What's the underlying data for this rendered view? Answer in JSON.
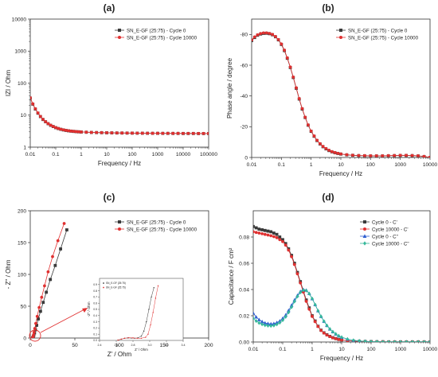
{
  "figure": {
    "panels": [
      {
        "id": "a",
        "label": "(a)"
      },
      {
        "id": "b",
        "label": "(b)"
      },
      {
        "id": "c",
        "label": "(c)"
      },
      {
        "id": "d",
        "label": "(d)"
      }
    ]
  },
  "chart_data": [
    {
      "panel": "a",
      "type": "line",
      "title": "(a)",
      "xlabel": "Frequency / Hz",
      "ylabel": "IZI / Ohm",
      "xscale": "log",
      "yscale": "log",
      "xlim": [
        0.01,
        100000
      ],
      "ylim": [
        1,
        10000
      ],
      "xticks": [
        "0.01",
        "0.1",
        "1",
        "10",
        "100",
        "1000",
        "10000",
        "100000"
      ],
      "yticks": [
        "1",
        "10",
        "100",
        "1000",
        "10000"
      ],
      "legend_position": "top-right",
      "x": [
        0.01,
        0.0126,
        0.0158,
        0.02,
        0.0251,
        0.0316,
        0.0398,
        0.0501,
        0.0631,
        0.0794,
        0.1,
        0.126,
        0.158,
        0.2,
        0.251,
        0.316,
        0.398,
        0.501,
        0.631,
        0.794,
        1,
        1.58,
        2.51,
        3.98,
        6.31,
        10,
        15.8,
        25.1,
        39.8,
        63.1,
        100,
        158,
        251,
        398,
        631,
        1000,
        1580,
        2510,
        3980,
        6310,
        10000,
        15800,
        25100,
        39800,
        63100,
        100000
      ],
      "series": [
        {
          "name": "SN_E-GF (25:75) - Cycle 0",
          "marker": "square",
          "color": "#3a3a3a",
          "values": [
            34,
            22,
            15.5,
            11.5,
            9.0,
            7.3,
            6.2,
            5.4,
            4.8,
            4.4,
            4.05,
            3.8,
            3.6,
            3.45,
            3.33,
            3.24,
            3.16,
            3.1,
            3.05,
            3.01,
            2.97,
            2.92,
            2.88,
            2.85,
            2.83,
            2.81,
            2.79,
            2.77,
            2.76,
            2.75,
            2.74,
            2.73,
            2.72,
            2.71,
            2.7,
            2.7,
            2.69,
            2.69,
            2.68,
            2.68,
            2.67,
            2.67,
            2.67,
            2.66,
            2.66,
            2.66
          ]
        },
        {
          "name": "SN_E-GF (25:75) - Cycle 10000",
          "marker": "circle",
          "color": "#e03030",
          "values": [
            35,
            22.5,
            15.8,
            11.7,
            9.1,
            7.4,
            6.25,
            5.45,
            4.85,
            4.42,
            4.08,
            3.82,
            3.62,
            3.47,
            3.35,
            3.25,
            3.17,
            3.11,
            3.06,
            3.02,
            2.98,
            2.93,
            2.89,
            2.86,
            2.84,
            2.82,
            2.8,
            2.78,
            2.77,
            2.76,
            2.75,
            2.74,
            2.73,
            2.72,
            2.71,
            2.71,
            2.7,
            2.7,
            2.69,
            2.69,
            2.68,
            2.68,
            2.68,
            2.67,
            2.67,
            2.67
          ]
        }
      ]
    },
    {
      "panel": "b",
      "type": "line",
      "title": "(b)",
      "xlabel": "Frequency / Hz",
      "ylabel": "Phase angle / degree",
      "xscale": "log",
      "yscale": "linear",
      "y_inverted": true,
      "xlim": [
        0.01,
        10000
      ],
      "ylim": [
        0,
        -90
      ],
      "xticks": [
        "0.01",
        "0.1",
        "1",
        "10",
        "100",
        "1000",
        "10000"
      ],
      "yticks": [
        "0",
        "-20",
        "-40",
        "-60",
        "-80"
      ],
      "legend_position": "top-right",
      "x": [
        0.01,
        0.0126,
        0.0158,
        0.02,
        0.0251,
        0.0316,
        0.0398,
        0.0501,
        0.0631,
        0.0794,
        0.1,
        0.126,
        0.158,
        0.2,
        0.251,
        0.316,
        0.398,
        0.501,
        0.631,
        0.794,
        1,
        1.26,
        1.58,
        2,
        2.51,
        3.16,
        3.98,
        5.01,
        6.31,
        7.94,
        10,
        15.8,
        25.1,
        39.8,
        63.1,
        100,
        158,
        251,
        398,
        631,
        1000,
        1580,
        2510,
        3980,
        6310,
        10000
      ],
      "series": [
        {
          "name": "SN_E-GF (25:75) - Cycle 0",
          "marker": "square",
          "color": "#3a3a3a",
          "values": [
            -76,
            -78,
            -79.5,
            -80.3,
            -80.7,
            -80.8,
            -80.5,
            -79.8,
            -78.5,
            -76.5,
            -73.5,
            -69.5,
            -64.5,
            -58.5,
            -52,
            -45,
            -38,
            -31.5,
            -26,
            -21,
            -17,
            -13.8,
            -11,
            -8.8,
            -7,
            -5.6,
            -4.5,
            -3.7,
            -3.1,
            -2.6,
            -2.2,
            -1.7,
            -1.4,
            -1.2,
            -1.1,
            -1.0,
            -1.0,
            -1.0,
            -1.1,
            -1.2,
            -1.3,
            -1.3,
            -1.2,
            -1.0,
            -0.6,
            0.0
          ]
        },
        {
          "name": "SN_E-GF (25:75) - Cycle 10000",
          "marker": "circle",
          "color": "#e03030",
          "values": [
            -76.5,
            -78.4,
            -79.8,
            -80.6,
            -81,
            -81,
            -80.7,
            -80,
            -78.7,
            -76.7,
            -73.8,
            -69.8,
            -64.8,
            -58.8,
            -52.3,
            -45.3,
            -38.3,
            -31.8,
            -26.2,
            -21.2,
            -17.2,
            -14,
            -11.2,
            -9,
            -7.2,
            -5.8,
            -4.7,
            -3.8,
            -3.2,
            -2.7,
            -2.3,
            -1.8,
            -1.5,
            -1.3,
            -1.2,
            -1.1,
            -1.1,
            -1.1,
            -1.2,
            -1.3,
            -1.4,
            -1.4,
            -1.3,
            -1.1,
            -0.7,
            -0.1
          ]
        }
      ]
    },
    {
      "panel": "c",
      "type": "scatter",
      "title": "(c)",
      "xlabel": "Z' / Ohm",
      "ylabel": "- Z'' / Ohm",
      "xlim": [
        0,
        200
      ],
      "ylim": [
        0,
        200
      ],
      "xticks": [
        "0",
        "50",
        "100",
        "150",
        "200"
      ],
      "yticks": [
        "0",
        "50",
        "100",
        "150",
        "200"
      ],
      "legend_position": "top-right",
      "series": [
        {
          "name": "SN_E-GF (25:75) - Cycle 0",
          "marker": "square",
          "color": "#3a3a3a",
          "points": [
            [
              2.6,
              0.1
            ],
            [
              2.8,
              0.4
            ],
            [
              3.1,
              1.2
            ],
            [
              3.5,
              2.5
            ],
            [
              4.0,
              4.5
            ],
            [
              4.8,
              8
            ],
            [
              5.8,
              13
            ],
            [
              7.2,
              20
            ],
            [
              9,
              30
            ],
            [
              11.5,
              42
            ],
            [
              14.5,
              56
            ],
            [
              18,
              72
            ],
            [
              22.5,
              92
            ],
            [
              28,
              114
            ],
            [
              34,
              140
            ],
            [
              41,
              170
            ]
          ]
        },
        {
          "name": "SN_E-GF (25:75) - Cycle 10000",
          "marker": "circle",
          "color": "#e03030",
          "points": [
            [
              2.6,
              0.1
            ],
            [
              2.8,
              0.5
            ],
            [
              3.0,
              1.4
            ],
            [
              3.3,
              2.8
            ],
            [
              3.7,
              5
            ],
            [
              4.3,
              9
            ],
            [
              5.1,
              15
            ],
            [
              6.2,
              23
            ],
            [
              7.8,
              34
            ],
            [
              10,
              48
            ],
            [
              12.8,
              64
            ],
            [
              16,
              82
            ],
            [
              20,
              104
            ],
            [
              25,
              128
            ],
            [
              31,
              153
            ],
            [
              38,
              180
            ]
          ]
        }
      ],
      "inset": {
        "legend": [
          "SN_E-GF (25:75)",
          "SN_E-GF (25:75)"
        ],
        "xlabel": "Z' / Ohm",
        "ylabel": "-Z'' / Ohm",
        "xlim": [
          2.4,
          3.4
        ],
        "ylim": [
          0,
          1.0
        ],
        "xticks": [
          "2.4",
          "2.6",
          "2.8",
          "3.0",
          "3.2",
          "3.4"
        ],
        "yticks": [
          "0.0",
          "0.1",
          "0.2",
          "0.3",
          "0.4",
          "0.5",
          "0.6",
          "0.7",
          "0.8",
          "0.9"
        ],
        "series": [
          {
            "color": "#3a3a3a",
            "points": [
              [
                2.62,
                0.005
              ],
              [
                2.66,
                0.02
              ],
              [
                2.7,
                0.035
              ],
              [
                2.74,
                0.04
              ],
              [
                2.78,
                0.038
              ],
              [
                2.82,
                0.035
              ],
              [
                2.86,
                0.04
              ],
              [
                2.9,
                0.07
              ],
              [
                2.93,
                0.15
              ],
              [
                2.96,
                0.3
              ],
              [
                2.99,
                0.5
              ],
              [
                3.02,
                0.7
              ],
              [
                3.05,
                0.85
              ]
            ]
          },
          {
            "color": "#e03030",
            "points": [
              [
                2.62,
                0.005
              ],
              [
                2.66,
                0.02
              ],
              [
                2.7,
                0.035
              ],
              [
                2.75,
                0.042
              ],
              [
                2.8,
                0.04
              ],
              [
                2.85,
                0.035
              ],
              [
                2.9,
                0.035
              ],
              [
                2.95,
                0.05
              ],
              [
                2.98,
                0.1
              ],
              [
                3.01,
                0.25
              ],
              [
                3.04,
                0.45
              ],
              [
                3.07,
                0.68
              ],
              [
                3.1,
                0.88
              ]
            ]
          }
        ]
      }
    },
    {
      "panel": "d",
      "type": "line",
      "title": "(d)",
      "xlabel": "Frequency / Hz",
      "ylabel": "Capacitance / F cm²",
      "xscale": "log",
      "yscale": "linear",
      "xlim": [
        0.01,
        10000
      ],
      "ylim": [
        0,
        0.1
      ],
      "xticks": [
        "0.01",
        "0.1",
        "1",
        "10",
        "100",
        "1000",
        "10000"
      ],
      "yticks": [
        "0.00",
        "0.02",
        "0.04",
        "0.06",
        "0.08"
      ],
      "legend_position": "top-right",
      "x": [
        0.01,
        0.0126,
        0.0158,
        0.02,
        0.0251,
        0.0316,
        0.0398,
        0.0501,
        0.0631,
        0.0794,
        0.1,
        0.126,
        0.158,
        0.2,
        0.251,
        0.316,
        0.398,
        0.501,
        0.631,
        0.794,
        1,
        1.26,
        1.58,
        2,
        2.51,
        3.16,
        3.98,
        5.01,
        6.31,
        7.94,
        10,
        15.8,
        25.1,
        39.8,
        63.1,
        100,
        158,
        251,
        398,
        631,
        1000,
        1580,
        2510,
        3980,
        6310,
        10000
      ],
      "series": [
        {
          "name": "Cycle 0 - C'",
          "marker": "square",
          "color": "#3a3a3a",
          "values": [
            0.088,
            0.087,
            0.086,
            0.0855,
            0.085,
            0.0845,
            0.084,
            0.083,
            0.082,
            0.08,
            0.078,
            0.075,
            0.071,
            0.066,
            0.06,
            0.053,
            0.046,
            0.039,
            0.032,
            0.026,
            0.02,
            0.016,
            0.012,
            0.009,
            0.007,
            0.0055,
            0.0043,
            0.0033,
            0.0026,
            0.002,
            0.0016,
            0.001,
            0.0007,
            0.0005,
            0.0004,
            0.0003,
            0.0002,
            0.0002,
            0.0001,
            0.0001,
            0.0001,
            0.0001,
            0.0001,
            0.0001,
            0.0001,
            0.0001
          ]
        },
        {
          "name": "Cycle 10000 - C'",
          "marker": "circle",
          "color": "#e03030",
          "values": [
            0.084,
            0.0835,
            0.083,
            0.0825,
            0.082,
            0.0815,
            0.081,
            0.0803,
            0.0795,
            0.078,
            0.0765,
            0.0738,
            0.07,
            0.065,
            0.059,
            0.052,
            0.045,
            0.038,
            0.031,
            0.025,
            0.0195,
            0.0155,
            0.0118,
            0.0088,
            0.0068,
            0.0053,
            0.0042,
            0.0032,
            0.0025,
            0.0019,
            0.0015,
            0.001,
            0.0007,
            0.0005,
            0.0004,
            0.0003,
            0.0002,
            0.0002,
            0.0001,
            0.0001,
            0.0001,
            0.0001,
            0.0001,
            0.0001,
            0.0001,
            0.0001
          ]
        },
        {
          "name": "Cycle 0 - C\"",
          "marker": "triangle",
          "color": "#2f5fd0",
          "values": [
            0.022,
            0.019,
            0.017,
            0.0155,
            0.0145,
            0.014,
            0.0138,
            0.014,
            0.0148,
            0.016,
            0.018,
            0.0205,
            0.024,
            0.028,
            0.032,
            0.0355,
            0.0385,
            0.04,
            0.0395,
            0.037,
            0.033,
            0.0285,
            0.0238,
            0.0195,
            0.0158,
            0.0126,
            0.0099,
            0.0078,
            0.0061,
            0.0047,
            0.0036,
            0.0022,
            0.0013,
            0.0008,
            0.0005,
            0.0003,
            0.0002,
            0.0001,
            0.0001,
            0.0001,
            0.0001,
            0.0001,
            0.0001,
            0.0001,
            0.0001,
            0.0001
          ]
        },
        {
          "name": "Cycle 10000 - C\"",
          "marker": "diamond",
          "color": "#35b89a",
          "values": [
            0.018,
            0.016,
            0.0145,
            0.0135,
            0.0128,
            0.0124,
            0.0123,
            0.0126,
            0.0134,
            0.0147,
            0.0166,
            0.0192,
            0.0226,
            0.0266,
            0.0308,
            0.0347,
            0.0378,
            0.0395,
            0.0392,
            0.0368,
            0.033,
            0.0285,
            0.0238,
            0.0195,
            0.0158,
            0.0126,
            0.0099,
            0.0078,
            0.0061,
            0.0047,
            0.0036,
            0.0022,
            0.0013,
            0.0008,
            0.0005,
            0.0003,
            0.0002,
            0.0001,
            0.0001,
            0.0001,
            0.0001,
            0.0001,
            0.0001,
            0.0001,
            0.0001,
            0.0001
          ]
        }
      ]
    }
  ]
}
